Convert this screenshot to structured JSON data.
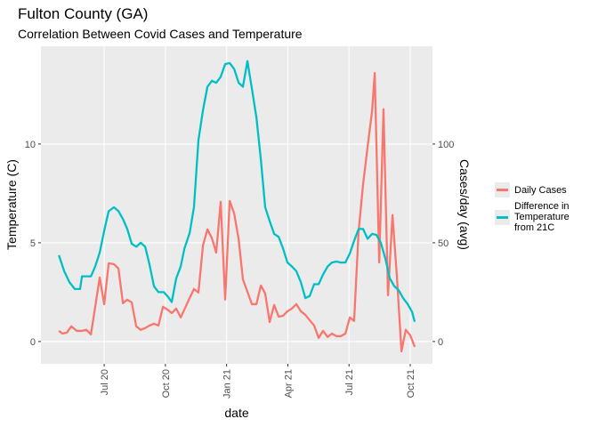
{
  "chart_data": {
    "type": "line",
    "title": "Fulton County (GA)",
    "subtitle": "Correlation Between Covid Cases and Temperature",
    "x_label": "date",
    "y_label": "Temperature (C)",
    "y2_label": "Cases/day (avg)",
    "xlim": [
      2.9,
      22.09
    ],
    "xticks": [
      {
        "value": 6,
        "label": "Jul 20"
      },
      {
        "value": 9,
        "label": "Oct 20"
      },
      {
        "value": 12,
        "label": "Jan 21"
      },
      {
        "value": 15,
        "label": "Apr 21"
      },
      {
        "value": 18,
        "label": "Jul 21"
      },
      {
        "value": 21,
        "label": "Oct 21"
      }
    ],
    "ylim": [
      -1.13,
      14.95
    ],
    "yticks": [
      0,
      5,
      10
    ],
    "y2lim": [
      -11.3,
      149.5
    ],
    "y2ticks": [
      0,
      50,
      100
    ],
    "grid": true,
    "series": [
      {
        "name": "Daily Cases",
        "color": "#F8766D",
        "axis": "y2",
        "x": [
          3.78,
          3.95,
          4.17,
          4.39,
          4.65,
          4.91,
          5.13,
          5.35,
          5.56,
          5.78,
          6.0,
          6.22,
          6.48,
          6.7,
          6.92,
          7.13,
          7.35,
          7.57,
          7.79,
          8.01,
          8.22,
          8.44,
          8.66,
          8.88,
          9.1,
          9.31,
          9.53,
          9.75,
          9.97,
          10.19,
          10.4,
          10.62,
          10.84,
          11.06,
          11.28,
          11.49,
          11.71,
          11.93,
          12.15,
          12.37,
          12.59,
          12.8,
          13.02,
          13.24,
          13.46,
          13.68,
          13.89,
          14.11,
          14.33,
          14.55,
          14.77,
          14.98,
          15.2,
          15.42,
          15.64,
          15.86,
          16.07,
          16.29,
          16.51,
          16.73,
          16.95,
          17.16,
          17.38,
          17.6,
          17.82,
          18.04,
          18.25,
          18.47,
          18.69,
          18.91,
          19.13,
          19.26,
          19.48,
          19.69,
          19.91,
          20.13,
          20.35,
          20.57,
          20.78,
          21.0,
          21.22
        ],
        "values": [
          5.4,
          4,
          4.5,
          7.7,
          5.4,
          5.4,
          5.9,
          3.6,
          17.6,
          32.4,
          18.9,
          39.6,
          39.2,
          36.9,
          19.4,
          21.2,
          19.8,
          7.7,
          5.9,
          6.8,
          8.1,
          9.0,
          8.1,
          17.6,
          16.2,
          14.4,
          16.7,
          12.2,
          17.1,
          22.1,
          26.6,
          24.8,
          48.6,
          56.8,
          52.3,
          45,
          70.7,
          21.2,
          71.2,
          64.9,
          51.8,
          31.5,
          25.2,
          18.9,
          18.9,
          28.4,
          24.3,
          9.9,
          18.5,
          12.6,
          13.1,
          15.3,
          16.7,
          18.9,
          15.3,
          13.5,
          10.8,
          8.1,
          1.8,
          5.4,
          2.3,
          4.0,
          2.7,
          2.7,
          4.0,
          12.2,
          10.4,
          55.9,
          79.7,
          98.6,
          116.7,
          136,
          40,
          117.6,
          23.4,
          64,
          32.4,
          -5,
          5.9,
          3.2,
          -2.7
        ]
      },
      {
        "name": "Difference in Temperature from 21C",
        "color": "#00BFC4",
        "axis": "y",
        "x": [
          3.78,
          4.04,
          4.3,
          4.56,
          4.82,
          4.91,
          5.22,
          5.35,
          5.56,
          5.78,
          6.04,
          6.22,
          6.48,
          6.7,
          6.92,
          7.13,
          7.35,
          7.57,
          7.79,
          8.01,
          8.22,
          8.44,
          8.66,
          8.92,
          9.1,
          9.31,
          9.53,
          9.75,
          9.93,
          10.19,
          10.4,
          10.62,
          10.84,
          11.06,
          11.28,
          11.49,
          11.71,
          11.93,
          12.15,
          12.37,
          12.59,
          12.8,
          13.02,
          13.24,
          13.46,
          13.68,
          13.89,
          14.11,
          14.33,
          14.55,
          14.77,
          14.98,
          15.2,
          15.42,
          15.64,
          15.86,
          16.07,
          16.29,
          16.51,
          16.73,
          16.95,
          17.16,
          17.38,
          17.6,
          17.82,
          18.04,
          18.25,
          18.47,
          18.69,
          18.91,
          19.13,
          19.34,
          19.56,
          19.78,
          20.0,
          20.22,
          20.43,
          20.65,
          20.87,
          21.09,
          21.22
        ],
        "values": [
          4.37,
          3.56,
          3.0,
          2.66,
          2.66,
          3.3,
          3.3,
          3.3,
          3.8,
          4.5,
          5.8,
          6.6,
          6.8,
          6.6,
          6.2,
          5.7,
          4.95,
          4.8,
          5.0,
          4.8,
          3.9,
          2.8,
          2.5,
          2.5,
          2.3,
          2.0,
          3.2,
          3.8,
          4.7,
          5.5,
          6.8,
          10.2,
          11.7,
          12.9,
          13.2,
          13.1,
          13.4,
          14.05,
          14.1,
          13.8,
          13.1,
          12.9,
          14.2,
          12.8,
          11.35,
          9.2,
          6.8,
          6.1,
          5.45,
          5.3,
          4.7,
          4.0,
          3.8,
          3.56,
          3.0,
          2.2,
          2.3,
          2.9,
          2.9,
          3.4,
          3.8,
          4.0,
          4.05,
          4.0,
          4.0,
          4.46,
          5.1,
          5.7,
          5.7,
          5.2,
          5.45,
          5.4,
          5.0,
          4.2,
          3.2,
          2.8,
          2.6,
          2.2,
          1.9,
          1.5,
          1.0
        ]
      }
    ]
  }
}
